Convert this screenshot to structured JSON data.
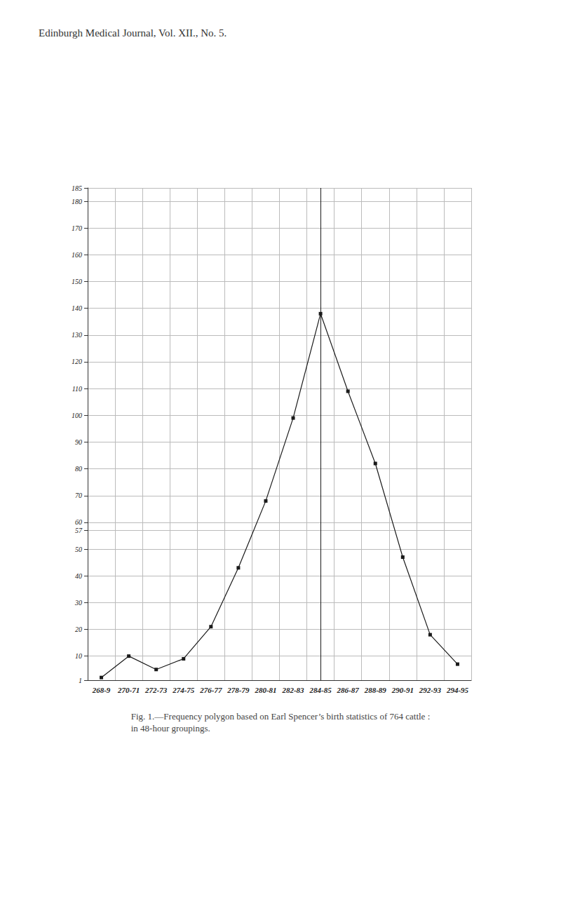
{
  "chart_data": {
    "type": "line",
    "header": "Edinburgh Medical Journal, Vol. XII., No. 5.",
    "caption": [
      "Fig. 1.—Frequency polygon based on Earl Spencer’s birth statistics of 764 cattle :",
      "in 48-hour groupings."
    ],
    "categories": [
      "268-9",
      "270-71",
      "272-73",
      "274-75",
      "276-77",
      "278-79",
      "280-81",
      "282-83",
      "284-85",
      "286-87",
      "288-89",
      "290-91",
      "292-93",
      "294-95"
    ],
    "values": [
      2,
      10,
      5,
      9,
      21,
      43,
      68,
      99,
      138,
      109,
      82,
      47,
      18,
      7
    ],
    "color": "#1a1a1a",
    "marker": "square",
    "ylim": [
      1,
      185
    ],
    "yticks": [
      1,
      10,
      20,
      30,
      40,
      50,
      57,
      60,
      70,
      80,
      90,
      100,
      110,
      120,
      130,
      140,
      150,
      160,
      170,
      180,
      185
    ],
    "grid": true
  }
}
